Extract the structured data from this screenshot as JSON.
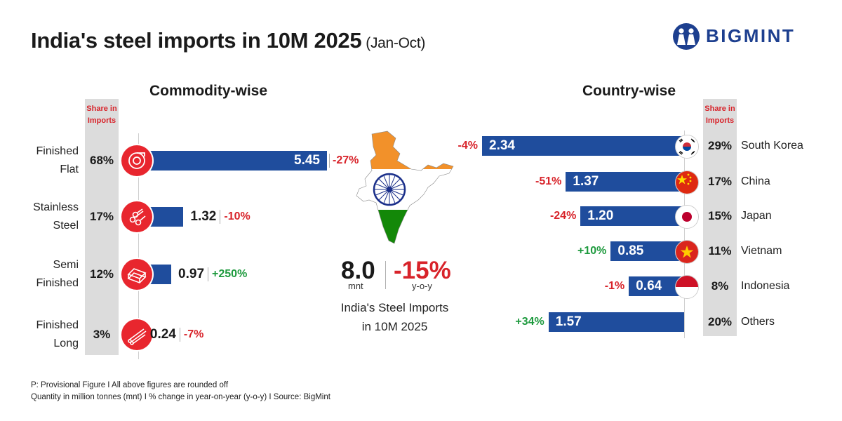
{
  "title": "India's steel imports in 10M 2025",
  "title_sub": "(Jan-Oct)",
  "logo_text": "BIGMINT",
  "colors": {
    "bar": "#1f4d9d",
    "negative": "#d8232a",
    "positive": "#1e9a3e",
    "icon_bg": "#e8262e"
  },
  "commodity": {
    "title": "Commodity-wise",
    "share_header_1": "Share in",
    "share_header_2": "Imports",
    "rows": [
      {
        "label_1": "Finished",
        "label_2": "Flat",
        "share": "68%",
        "value": "5.45",
        "change": "-27%",
        "icon": "coil-icon"
      },
      {
        "label_1": "Stainless",
        "label_2": "Steel",
        "share": "17%",
        "value": "1.32",
        "change": "-10%",
        "icon": "pipes-icon"
      },
      {
        "label_1": "Semi",
        "label_2": "Finished",
        "share": "12%",
        "value": "0.97",
        "change": "+250%",
        "icon": "billets-icon"
      },
      {
        "label_1": "Finished",
        "label_2": "Long",
        "share": "3%",
        "value": "0.24",
        "change": "-7%",
        "icon": "rods-icon"
      }
    ]
  },
  "country": {
    "title": "Country-wise",
    "share_header_1": "Share in",
    "share_header_2": "Imports",
    "rows": [
      {
        "name": "South Korea",
        "share": "29%",
        "value": "2.34",
        "change": "-4%",
        "flag": "south-korea-flag-icon"
      },
      {
        "name": "China",
        "share": "17%",
        "value": "1.37",
        "change": "-51%",
        "flag": "china-flag-icon"
      },
      {
        "name": "Japan",
        "share": "15%",
        "value": "1.20",
        "change": "-24%",
        "flag": "japan-flag-icon"
      },
      {
        "name": "Vietnam",
        "share": "11%",
        "value": "0.85",
        "change": "+10%",
        "flag": "vietnam-flag-icon"
      },
      {
        "name": "Indonesia",
        "share": "8%",
        "value": "0.64",
        "change": "-1%",
        "flag": "indonesia-flag-icon"
      },
      {
        "name": "Others",
        "share": "20%",
        "value": "1.57",
        "change": "+34%",
        "flag": ""
      }
    ]
  },
  "center": {
    "total_value": "8.0",
    "total_unit": "mnt",
    "total_change": "-15%",
    "change_unit": "y-o-y",
    "caption_1": "India's Steel Imports",
    "caption_2": "in 10M 2025"
  },
  "footnotes": {
    "line_1": "P: Provisional Figure  I  All above figures are rounded off",
    "line_2": "Quantity in million tonnes (mnt)  I  % change in year-on-year (y-o-y)  I  Source: BigMint"
  },
  "chart_data": [
    {
      "type": "bar",
      "title": "Commodity-wise",
      "categories": [
        "Finished Flat",
        "Stainless Steel",
        "Semi Finished",
        "Finished Long"
      ],
      "values": [
        5.45,
        1.32,
        0.97,
        0.24
      ],
      "share": [
        "68%",
        "17%",
        "12%",
        "3%"
      ],
      "yoy_change": [
        "-27%",
        "-10%",
        "+250%",
        "-7%"
      ]
    },
    {
      "type": "bar",
      "title": "Country-wise",
      "categories": [
        "South Korea",
        "China",
        "Japan",
        "Vietnam",
        "Indonesia",
        "Others"
      ],
      "values": [
        2.34,
        1.37,
        1.2,
        0.85,
        0.64,
        1.57
      ],
      "share": [
        "29%",
        "17%",
        "15%",
        "11%",
        "8%",
        "20%"
      ],
      "yoy_change": [
        "-4%",
        "-51%",
        "-24%",
        "+10%",
        "-1%",
        "+34%"
      ]
    }
  ]
}
